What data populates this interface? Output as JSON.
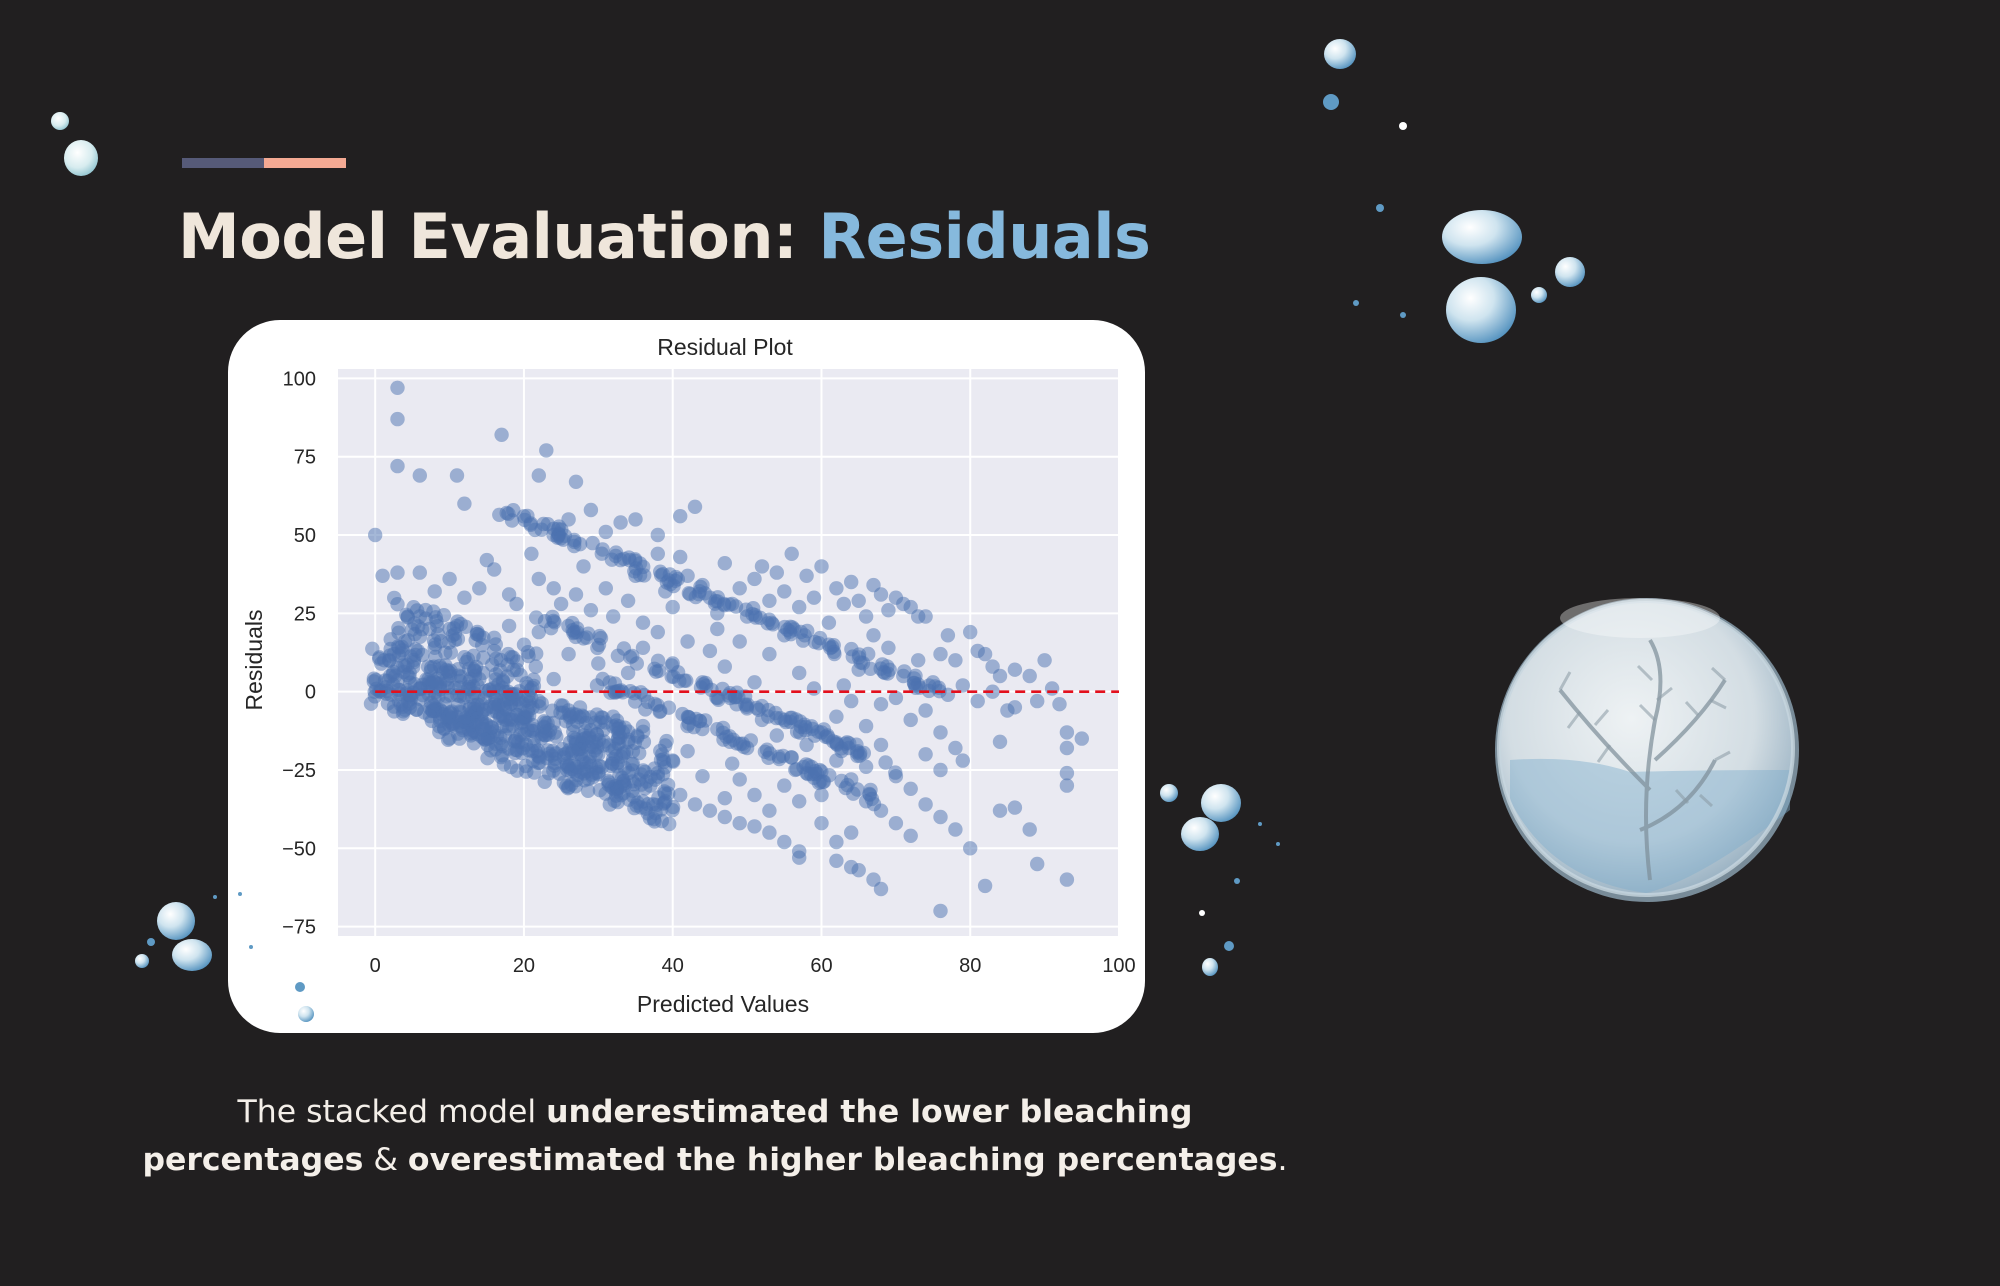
{
  "slide": {
    "title_prefix": "Model Evaluation: ",
    "title_highlight": "Residuals",
    "caption": {
      "part1": "The stacked model ",
      "bold1": "underestimated the lower bleaching percentages",
      "part2": " & ",
      "bold2": "overestimated the higher bleaching percentages",
      "part3": "."
    },
    "colors": {
      "background": "#211f20",
      "title": "#efe6db",
      "title_highlight": "#86b9dd",
      "accent_left": "#565a78",
      "accent_right": "#f4a993",
      "caption": "#f4efe9"
    }
  },
  "chart_data": {
    "type": "scatter",
    "title": "Residual Plot",
    "xlabel": "Predicted Values",
    "ylabel": "Residuals",
    "xlim": [
      -5,
      100
    ],
    "ylim": [
      -78,
      103
    ],
    "xticks": [
      0,
      20,
      40,
      60,
      80,
      100
    ],
    "yticks": [
      100,
      75,
      50,
      25,
      0,
      -25,
      -50,
      -75
    ],
    "xtick_labels": [
      "0",
      "20",
      "40",
      "60",
      "80",
      "100"
    ],
    "ytick_labels": [
      "100",
      "75",
      "50",
      "25",
      "0",
      "−25",
      "−50",
      "−75"
    ],
    "grid": true,
    "reference_line": {
      "y": 0,
      "color": "#e3101d",
      "style": "dashed"
    },
    "point_color": "#4c72b0",
    "point_alpha": 0.5,
    "plot_background": "#eaeaf2",
    "points": [
      [
        3,
        97
      ],
      [
        3,
        87
      ],
      [
        3,
        72
      ],
      [
        6,
        69
      ],
      [
        11,
        69
      ],
      [
        12,
        60
      ],
      [
        17,
        82
      ],
      [
        23,
        77
      ],
      [
        22,
        69
      ],
      [
        27,
        67
      ],
      [
        29,
        58
      ],
      [
        24,
        52
      ],
      [
        26,
        55
      ],
      [
        35,
        55
      ],
      [
        38,
        50
      ],
      [
        41,
        56
      ],
      [
        43,
        59
      ],
      [
        33,
        54
      ],
      [
        31,
        51
      ],
      [
        0,
        50
      ],
      [
        1,
        37
      ],
      [
        3,
        38
      ],
      [
        6,
        38
      ],
      [
        8,
        32
      ],
      [
        10,
        36
      ],
      [
        12,
        30
      ],
      [
        14,
        33
      ],
      [
        15,
        42
      ],
      [
        16,
        39
      ],
      [
        18,
        31
      ],
      [
        19,
        28
      ],
      [
        21,
        44
      ],
      [
        22,
        36
      ],
      [
        24,
        33
      ],
      [
        25,
        28
      ],
      [
        27,
        31
      ],
      [
        28,
        40
      ],
      [
        29,
        26
      ],
      [
        31,
        33
      ],
      [
        32,
        24
      ],
      [
        33,
        42
      ],
      [
        34,
        29
      ],
      [
        35,
        37
      ],
      [
        36,
        22
      ],
      [
        38,
        44
      ],
      [
        39,
        32
      ],
      [
        40,
        27
      ],
      [
        41,
        43
      ],
      [
        42,
        37
      ],
      [
        44,
        34
      ],
      [
        45,
        30
      ],
      [
        46,
        25
      ],
      [
        47,
        41
      ],
      [
        48,
        28
      ],
      [
        49,
        33
      ],
      [
        50,
        24
      ],
      [
        51,
        36
      ],
      [
        52,
        40
      ],
      [
        53,
        29
      ],
      [
        54,
        38
      ],
      [
        55,
        32
      ],
      [
        56,
        44
      ],
      [
        57,
        27
      ],
      [
        58,
        37
      ],
      [
        59,
        30
      ],
      [
        60,
        40
      ],
      [
        61,
        22
      ],
      [
        62,
        33
      ],
      [
        63,
        28
      ],
      [
        64,
        35
      ],
      [
        65,
        29
      ],
      [
        66,
        24
      ],
      [
        67,
        34
      ],
      [
        68,
        31
      ],
      [
        69,
        26
      ],
      [
        70,
        30
      ],
      [
        71,
        28
      ],
      [
        72,
        27
      ],
      [
        73,
        24
      ],
      [
        74,
        24
      ],
      [
        76,
        12
      ],
      [
        77,
        18
      ],
      [
        78,
        10
      ],
      [
        80,
        19
      ],
      [
        81,
        13
      ],
      [
        82,
        12
      ],
      [
        83,
        8
      ],
      [
        84,
        5
      ],
      [
        86,
        7
      ],
      [
        88,
        5
      ],
      [
        90,
        10
      ],
      [
        91,
        1
      ],
      [
        92,
        -4
      ],
      [
        93,
        -13
      ],
      [
        93,
        -18
      ],
      [
        93,
        -26
      ],
      [
        93,
        -30
      ],
      [
        95,
        -15
      ],
      [
        89,
        -3
      ],
      [
        86,
        -5
      ],
      [
        84,
        -16
      ],
      [
        79,
        -22
      ],
      [
        78,
        -18
      ],
      [
        76,
        -13
      ],
      [
        74,
        -6
      ],
      [
        72,
        -9
      ],
      [
        70,
        -2
      ],
      [
        68,
        -4
      ],
      [
        66,
        -11
      ],
      [
        64,
        -3
      ],
      [
        62,
        -8
      ],
      [
        60,
        -13
      ],
      [
        58,
        -17
      ],
      [
        56,
        -21
      ],
      [
        54,
        -14
      ],
      [
        52,
        -9
      ],
      [
        50,
        -18
      ],
      [
        48,
        -23
      ],
      [
        46,
        -12
      ],
      [
        44,
        -27
      ],
      [
        42,
        -19
      ],
      [
        40,
        -22
      ],
      [
        38,
        -26
      ],
      [
        36,
        -11
      ],
      [
        34,
        -16
      ],
      [
        32,
        -8
      ],
      [
        30,
        -20
      ],
      [
        28,
        -14
      ],
      [
        26,
        -6
      ],
      [
        24,
        -10
      ],
      [
        22,
        -3
      ],
      [
        20,
        -8
      ],
      [
        18,
        -2
      ],
      [
        16,
        -5
      ],
      [
        14,
        4
      ],
      [
        12,
        -1
      ],
      [
        10,
        6
      ],
      [
        8,
        3
      ],
      [
        6,
        1
      ],
      [
        4,
        8
      ],
      [
        2,
        5
      ],
      [
        45,
        13
      ],
      [
        47,
        8
      ],
      [
        49,
        16
      ],
      [
        51,
        3
      ],
      [
        53,
        12
      ],
      [
        55,
        18
      ],
      [
        57,
        6
      ],
      [
        59,
        1
      ],
      [
        61,
        15
      ],
      [
        63,
        2
      ],
      [
        65,
        7
      ],
      [
        67,
        18
      ],
      [
        69,
        14
      ],
      [
        71,
        5
      ],
      [
        73,
        10
      ],
      [
        75,
        3
      ],
      [
        77,
        -1
      ],
      [
        79,
        2
      ],
      [
        81,
        -3
      ],
      [
        83,
        0
      ],
      [
        85,
        -6
      ],
      [
        34,
        6
      ],
      [
        36,
        14
      ],
      [
        38,
        19
      ],
      [
        40,
        9
      ],
      [
        42,
        16
      ],
      [
        44,
        3
      ],
      [
        46,
        20
      ],
      [
        30,
        9
      ],
      [
        28,
        17
      ],
      [
        26,
        12
      ],
      [
        24,
        4
      ],
      [
        22,
        19
      ],
      [
        20,
        15
      ],
      [
        18,
        21
      ],
      [
        16,
        13
      ],
      [
        14,
        18
      ],
      [
        12,
        11
      ],
      [
        10,
        20
      ],
      [
        8,
        14
      ],
      [
        6,
        24
      ],
      [
        4,
        16
      ],
      [
        60,
        -42
      ],
      [
        62,
        -48
      ],
      [
        64,
        -45
      ],
      [
        66,
        -35
      ],
      [
        68,
        -38
      ],
      [
        70,
        -42
      ],
      [
        72,
        -46
      ],
      [
        74,
        -36
      ],
      [
        76,
        -40
      ],
      [
        78,
        -44
      ],
      [
        80,
        -50
      ],
      [
        82,
        -62
      ],
      [
        84,
        -38
      ],
      [
        86,
        -37
      ],
      [
        88,
        -44
      ],
      [
        89,
        -55
      ],
      [
        93,
        -60
      ],
      [
        76,
        -70
      ],
      [
        68,
        -63
      ],
      [
        67,
        -60
      ],
      [
        65,
        -57
      ],
      [
        64,
        -56
      ],
      [
        62,
        -54
      ],
      [
        57,
        -51
      ],
      [
        57,
        -53
      ],
      [
        55,
        -48
      ],
      [
        53,
        -45
      ],
      [
        51,
        -43
      ],
      [
        49,
        -42
      ],
      [
        47,
        -40
      ],
      [
        45,
        -38
      ],
      [
        43,
        -36
      ],
      [
        41,
        -33
      ],
      [
        39,
        -35
      ],
      [
        37,
        -30
      ],
      [
        55,
        -30
      ],
      [
        58,
        -26
      ],
      [
        60,
        -33
      ],
      [
        62,
        -22
      ],
      [
        64,
        -28
      ],
      [
        66,
        -24
      ],
      [
        68,
        -17
      ],
      [
        70,
        -27
      ],
      [
        72,
        -31
      ],
      [
        74,
        -20
      ],
      [
        76,
        -25
      ],
      [
        57,
        -35
      ],
      [
        53,
        -38
      ],
      [
        51,
        -33
      ],
      [
        49,
        -28
      ],
      [
        47,
        -34
      ]
    ],
    "bands": [
      {
        "x": [
          0,
          40
        ],
        "y": [
          0,
          -38
        ],
        "spread": 3
      },
      {
        "x": [
          0,
          20
        ],
        "y": [
          8,
          -12
        ],
        "spread": 6
      },
      {
        "x": [
          0,
          36
        ],
        "y": [
          4,
          -22
        ],
        "spread": 9
      },
      {
        "x": [
          2,
          22
        ],
        "y": [
          22,
          2
        ],
        "spread": 10
      },
      {
        "x": [
          17,
          76
        ],
        "y": [
          58,
          0
        ],
        "spread": 2
      },
      {
        "x": [
          22,
          70
        ],
        "y": [
          24,
          -24
        ],
        "spread": 2
      },
      {
        "x": [
          30,
          68
        ],
        "y": [
          3,
          -35
        ],
        "spread": 2
      },
      {
        "x": [
          4,
          40
        ],
        "y": [
          2,
          -30
        ],
        "spread": 14
      }
    ]
  }
}
